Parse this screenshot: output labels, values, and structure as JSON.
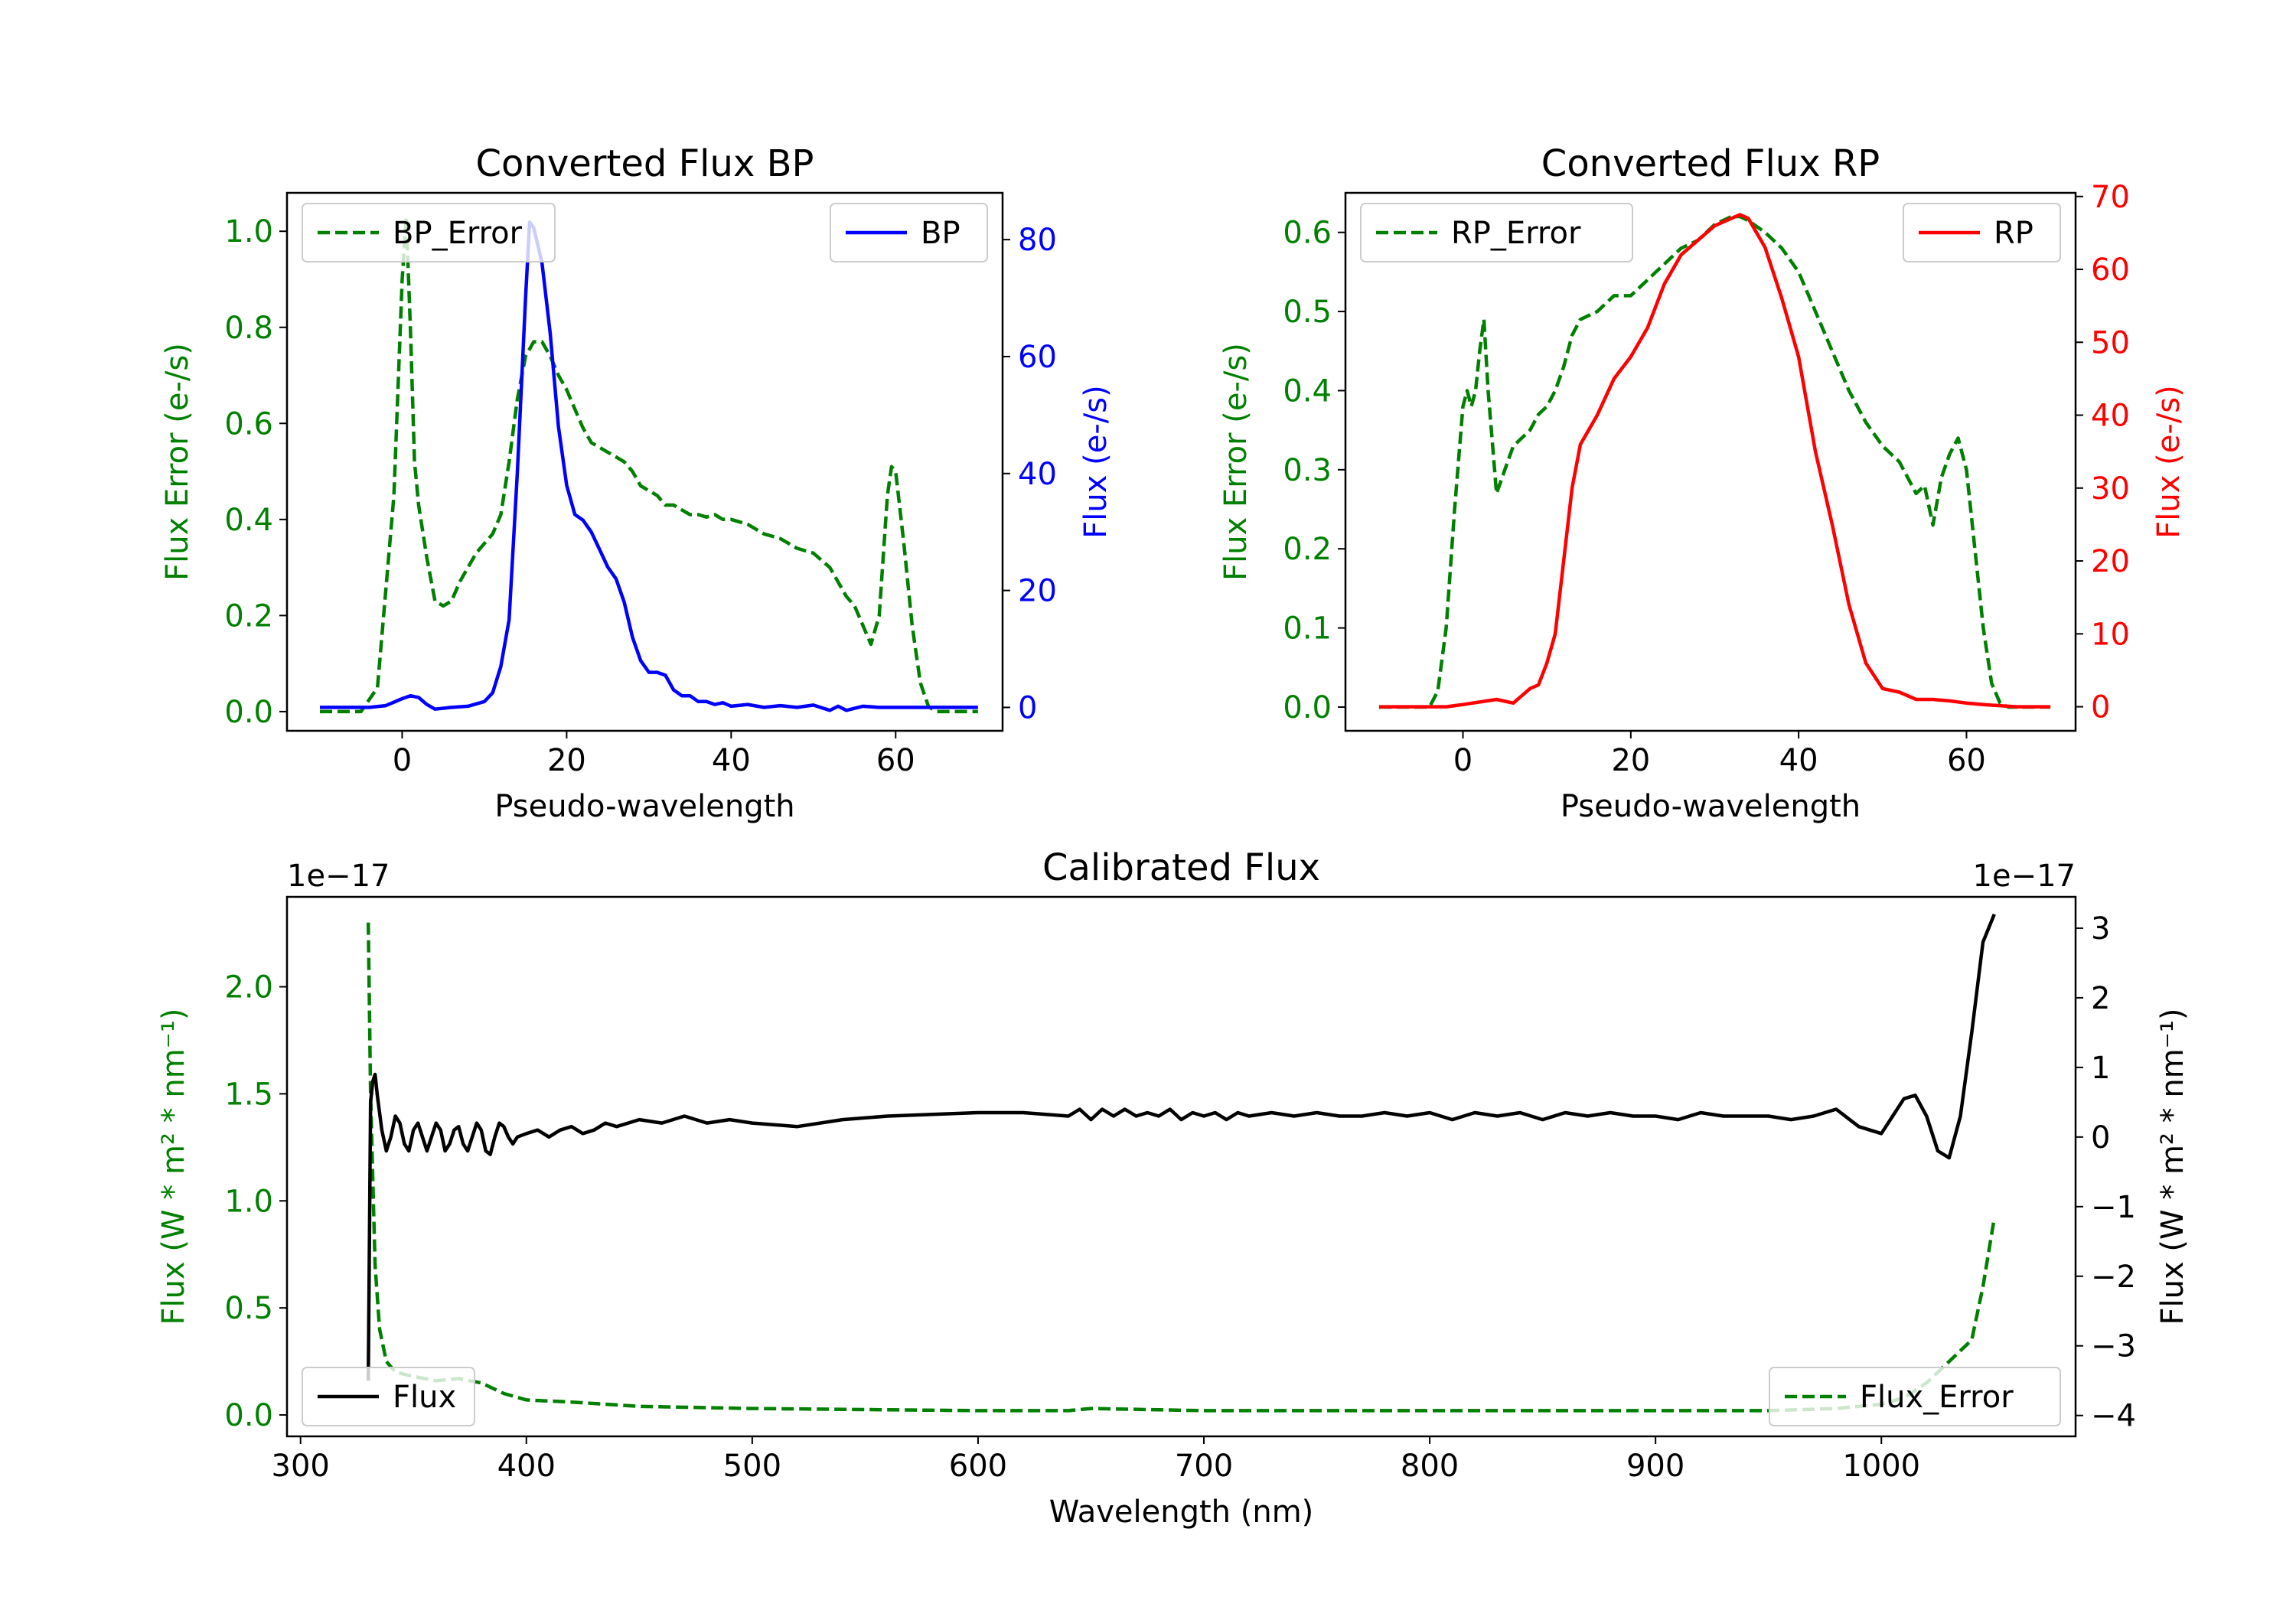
{
  "chart_data": [
    {
      "type": "line",
      "title": "Converted Flux BP",
      "xlabel": "Pseudo-wavelength",
      "ylabel_left": "Flux Error (e-/s)",
      "ylabel_right": "Flux (e-/s)",
      "xlim": [
        -14,
        73
      ],
      "ylim_left": [
        -0.04,
        1.08
      ],
      "ylim_right": [
        -4,
        88
      ],
      "xticks": [
        "0",
        "20",
        "40",
        "60"
      ],
      "yticks_left": [
        "0.0",
        "0.2",
        "0.4",
        "0.6",
        "0.8",
        "1.0"
      ],
      "yticks_right": [
        "0",
        "20",
        "40",
        "60",
        "80"
      ],
      "legend_left": "BP_Error",
      "legend_right": "BP",
      "colors": {
        "error": "#008000",
        "flux": "#0000ff",
        "left_axis": "#008000",
        "right_axis": "#0000ff"
      },
      "series": [
        {
          "name": "BP_Error",
          "axis": "left",
          "style": "dashed",
          "x": [
            -10,
            -5,
            -3,
            -1,
            0,
            0.5,
            1,
            1.5,
            2,
            3,
            4,
            5,
            6,
            7,
            8,
            9,
            10,
            11,
            12,
            13,
            14,
            15,
            16,
            17,
            18,
            19,
            20,
            21,
            22,
            23,
            24,
            25,
            26,
            27,
            28,
            29,
            30,
            31,
            32,
            33,
            34,
            35,
            36,
            37,
            38,
            39,
            40,
            42,
            44,
            46,
            48,
            50,
            52,
            54,
            55,
            56,
            57,
            58,
            59,
            59.5,
            60,
            61,
            62,
            63,
            64,
            65,
            66,
            70
          ],
          "y": [
            0,
            0,
            0.05,
            0.45,
            0.9,
            1.03,
            0.8,
            0.52,
            0.43,
            0.32,
            0.23,
            0.22,
            0.23,
            0.27,
            0.3,
            0.33,
            0.35,
            0.37,
            0.41,
            0.52,
            0.65,
            0.74,
            0.77,
            0.77,
            0.74,
            0.7,
            0.67,
            0.63,
            0.59,
            0.56,
            0.55,
            0.54,
            0.53,
            0.52,
            0.5,
            0.47,
            0.46,
            0.45,
            0.43,
            0.43,
            0.42,
            0.41,
            0.41,
            0.405,
            0.41,
            0.4,
            0.4,
            0.39,
            0.37,
            0.36,
            0.34,
            0.33,
            0.3,
            0.24,
            0.22,
            0.18,
            0.14,
            0.2,
            0.45,
            0.51,
            0.5,
            0.35,
            0.18,
            0.06,
            0.01,
            0,
            0,
            0
          ]
        },
        {
          "name": "BP",
          "axis": "right",
          "style": "solid",
          "x": [
            -10,
            -4,
            -2,
            0,
            1,
            2,
            3,
            4,
            6,
            8,
            10,
            11,
            12,
            13,
            14,
            15,
            15.5,
            16,
            17,
            18,
            19,
            20,
            21,
            22,
            23,
            24,
            25,
            26,
            27,
            28,
            29,
            30,
            31,
            32,
            33,
            34,
            35,
            36,
            37,
            38,
            39,
            40,
            42,
            44,
            46,
            48,
            50,
            52,
            53,
            54,
            56,
            58,
            60,
            65,
            70
          ],
          "y": [
            0,
            0,
            0.3,
            1.5,
            2,
            1.7,
            0.5,
            -0.3,
            0,
            0.2,
            1,
            2.5,
            7,
            15,
            40,
            70,
            83,
            82,
            76,
            64,
            48,
            38,
            33,
            32,
            30,
            27,
            24,
            22,
            18,
            12,
            8,
            6,
            6,
            5.5,
            3,
            2,
            2,
            1,
            1,
            0.5,
            0.8,
            0.2,
            0.5,
            0,
            0.3,
            0,
            0.4,
            -0.5,
            0.2,
            -0.5,
            0.2,
            0,
            0,
            0,
            0
          ]
        }
      ]
    },
    {
      "type": "line",
      "title": "Converted Flux RP",
      "xlabel": "Pseudo-wavelength",
      "ylabel_left": "Flux Error (e-/s)",
      "ylabel_right": "Flux (e-/s)",
      "xlim": [
        -14,
        73
      ],
      "ylim_left": [
        -0.03,
        0.65
      ],
      "ylim_right": [
        -3.3,
        70.5
      ],
      "xticks": [
        "0",
        "20",
        "40",
        "60"
      ],
      "yticks_left": [
        "0.0",
        "0.1",
        "0.2",
        "0.3",
        "0.4",
        "0.5",
        "0.6"
      ],
      "yticks_right": [
        "0",
        "10",
        "20",
        "30",
        "40",
        "50",
        "60",
        "70"
      ],
      "legend_left": "RP_Error",
      "legend_right": "RP",
      "colors": {
        "error": "#008000",
        "flux": "#ff0000",
        "left_axis": "#008000",
        "right_axis": "#ff0000"
      },
      "series": [
        {
          "name": "RP_Error",
          "axis": "left",
          "style": "dashed",
          "x": [
            -10,
            -4,
            -3,
            -2,
            -1,
            0,
            0.5,
            1,
            1.5,
            2,
            2.5,
            3,
            4,
            5,
            6,
            7,
            8,
            9,
            10,
            11,
            12,
            13,
            14,
            16,
            18,
            20,
            22,
            24,
            26,
            28,
            30,
            32,
            33,
            34,
            36,
            38,
            40,
            42,
            44,
            46,
            48,
            50,
            52,
            54,
            55,
            56,
            57,
            58,
            59,
            60,
            61,
            62,
            63,
            64,
            65,
            70
          ],
          "y": [
            0,
            0,
            0.02,
            0.1,
            0.25,
            0.38,
            0.4,
            0.38,
            0.4,
            0.45,
            0.49,
            0.4,
            0.27,
            0.3,
            0.33,
            0.34,
            0.35,
            0.37,
            0.38,
            0.4,
            0.43,
            0.47,
            0.49,
            0.5,
            0.52,
            0.52,
            0.54,
            0.56,
            0.58,
            0.59,
            0.61,
            0.62,
            0.62,
            0.615,
            0.6,
            0.58,
            0.55,
            0.5,
            0.45,
            0.4,
            0.36,
            0.33,
            0.31,
            0.27,
            0.28,
            0.23,
            0.29,
            0.32,
            0.34,
            0.3,
            0.2,
            0.1,
            0.03,
            0.005,
            0,
            0
          ]
        },
        {
          "name": "RP",
          "axis": "right",
          "style": "solid",
          "x": [
            -10,
            -2,
            0,
            4,
            6,
            8,
            9,
            10,
            11,
            12,
            13,
            14,
            15,
            16,
            18,
            20,
            22,
            24,
            26,
            28,
            30,
            32,
            33,
            34,
            36,
            38,
            40,
            42,
            44,
            46,
            48,
            50,
            52,
            54,
            56,
            58,
            60,
            62,
            66,
            70
          ],
          "y": [
            0,
            0,
            0.3,
            1,
            0.5,
            2.5,
            3,
            6,
            10,
            20,
            30,
            36,
            38,
            40,
            45,
            48,
            52,
            58,
            62,
            64,
            66,
            67,
            67.5,
            67,
            63,
            56,
            48,
            35,
            25,
            14,
            6,
            2.5,
            2,
            1,
            1,
            0.8,
            0.5,
            0.3,
            0,
            0
          ]
        }
      ]
    },
    {
      "type": "line",
      "title": "Calibrated Flux",
      "xlabel": "Wavelength (nm)",
      "ylabel_left": "Flux (W * m² * nm⁻¹)",
      "ylabel_right": "Flux (W * m² * nm⁻¹)",
      "offset_left": "1e−17",
      "offset_right": "1e−17",
      "xlim": [
        294,
        1086
      ],
      "ylim_left": [
        -0.1,
        2.42
      ],
      "ylim_right": [
        -4.3,
        3.45
      ],
      "xticks": [
        "300",
        "400",
        "500",
        "600",
        "700",
        "800",
        "900",
        "1000"
      ],
      "yticks_left": [
        "0.0",
        "0.5",
        "1.0",
        "1.5",
        "2.0"
      ],
      "yticks_right": [
        "−4",
        "−3",
        "−2",
        "−1",
        "0",
        "1",
        "2",
        "3"
      ],
      "legend_left": "Flux",
      "legend_right": "Flux_Error",
      "colors": {
        "error": "#008000",
        "flux": "#000000",
        "left_axis": "#008000",
        "right_axis": "#000000"
      },
      "series": [
        {
          "name": "Flux_Error",
          "axis": "left",
          "style": "dashed",
          "x": [
            330,
            331,
            332,
            333,
            335,
            338,
            342,
            350,
            360,
            370,
            380,
            390,
            400,
            420,
            450,
            500,
            600,
            640,
            650,
            700,
            800,
            900,
            950,
            980,
            1000,
            1010,
            1020,
            1030,
            1040,
            1045,
            1050
          ],
          "y": [
            2.3,
            1.5,
            1.1,
            0.7,
            0.4,
            0.25,
            0.2,
            0.18,
            0.16,
            0.17,
            0.15,
            0.1,
            0.07,
            0.06,
            0.04,
            0.03,
            0.02,
            0.02,
            0.03,
            0.02,
            0.02,
            0.02,
            0.02,
            0.03,
            0.05,
            0.08,
            0.15,
            0.25,
            0.35,
            0.6,
            0.92
          ]
        },
        {
          "name": "Flux",
          "axis": "right",
          "style": "solid",
          "x": [
            330,
            330.5,
            331,
            332,
            333,
            334,
            336,
            338,
            340,
            342,
            344,
            346,
            348,
            350,
            352,
            354,
            356,
            358,
            360,
            362,
            364,
            366,
            368,
            370,
            372,
            374,
            376,
            378,
            380,
            382,
            384,
            386,
            388,
            390,
            392,
            394,
            396,
            400,
            405,
            410,
            415,
            420,
            425,
            430,
            435,
            440,
            450,
            460,
            470,
            480,
            490,
            500,
            520,
            540,
            560,
            600,
            620,
            640,
            645,
            650,
            655,
            660,
            665,
            670,
            675,
            680,
            685,
            690,
            695,
            700,
            705,
            710,
            715,
            720,
            730,
            740,
            750,
            760,
            770,
            780,
            790,
            800,
            810,
            820,
            830,
            840,
            850,
            860,
            870,
            880,
            890,
            900,
            910,
            920,
            930,
            940,
            950,
            960,
            970,
            980,
            990,
            1000,
            1005,
            1010,
            1015,
            1020,
            1025,
            1030,
            1035,
            1040,
            1045,
            1050
          ],
          "y": [
            -3.5,
            -1.5,
            0.5,
            0.8,
            0.9,
            0.6,
            0.1,
            -0.2,
            0.0,
            0.3,
            0.2,
            -0.1,
            -0.2,
            0.1,
            0.2,
            0.0,
            -0.2,
            0.0,
            0.2,
            0.1,
            -0.2,
            -0.1,
            0.1,
            0.15,
            -0.1,
            -0.2,
            0.0,
            0.2,
            0.1,
            -0.2,
            -0.25,
            0.0,
            0.2,
            0.15,
            0.0,
            -0.1,
            0.0,
            0.05,
            0.1,
            0.0,
            0.1,
            0.15,
            0.05,
            0.1,
            0.2,
            0.15,
            0.25,
            0.2,
            0.3,
            0.2,
            0.25,
            0.2,
            0.15,
            0.25,
            0.3,
            0.35,
            0.35,
            0.3,
            0.4,
            0.25,
            0.4,
            0.3,
            0.4,
            0.3,
            0.35,
            0.3,
            0.4,
            0.25,
            0.35,
            0.3,
            0.35,
            0.25,
            0.35,
            0.3,
            0.35,
            0.3,
            0.35,
            0.3,
            0.3,
            0.35,
            0.3,
            0.35,
            0.25,
            0.35,
            0.3,
            0.35,
            0.25,
            0.35,
            0.3,
            0.35,
            0.3,
            0.3,
            0.25,
            0.35,
            0.3,
            0.3,
            0.3,
            0.25,
            0.3,
            0.4,
            0.15,
            0.05,
            0.3,
            0.55,
            0.6,
            0.3,
            -0.2,
            -0.3,
            0.3,
            1.5,
            2.8,
            3.2
          ]
        }
      ]
    }
  ]
}
